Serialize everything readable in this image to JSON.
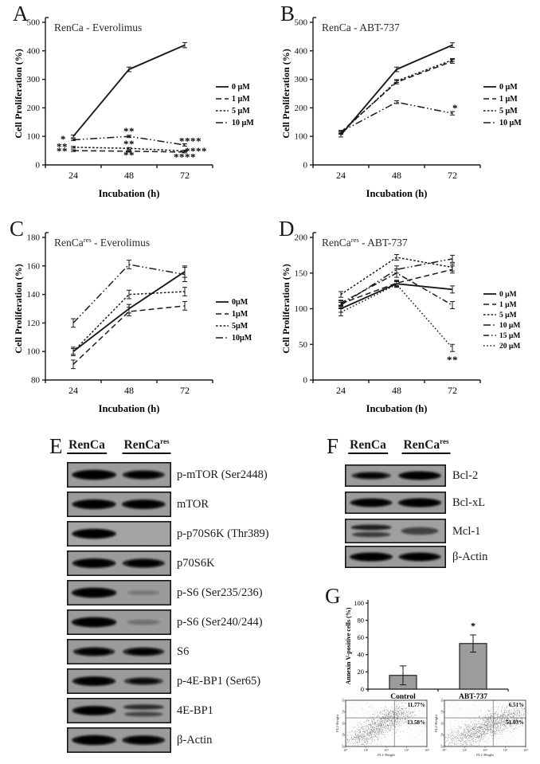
{
  "panels": {
    "A": "A",
    "B": "B",
    "C": "C",
    "D": "D",
    "E": "E",
    "F": "F",
    "G": "G"
  },
  "chart_data": [
    {
      "id": "chartA",
      "type": "line",
      "title_base": "RenCa",
      "title_sup": "",
      "title_rest": " - Everolimus",
      "xlabel": "Incubation (h)",
      "ylabel": "Cell Proliferation (%)",
      "categories": [
        "24",
        "48",
        "72"
      ],
      "ylim": [
        0,
        500
      ],
      "ytick": 100,
      "legend_position": "right",
      "grid": false,
      "series": [
        {
          "name": "0 µM",
          "style": "solid",
          "values": [
            100,
            335,
            420
          ],
          "err": [
            5,
            8,
            9
          ]
        },
        {
          "name": "1 µM",
          "style": "dash",
          "values": [
            50,
            48,
            45
          ],
          "err": [
            3,
            3,
            3
          ]
        },
        {
          "name": "5 µM",
          "style": "dot",
          "values": [
            62,
            58,
            49
          ],
          "err": [
            3,
            3,
            3
          ]
        },
        {
          "name": "10 µM",
          "style": "dashdotdot",
          "values": [
            88,
            100,
            70
          ],
          "err": [
            3,
            4,
            4
          ]
        }
      ],
      "annotations": [
        {
          "xi": -0.18,
          "y": 90,
          "text": "*"
        },
        {
          "xi": -0.2,
          "y": 63,
          "text": "**"
        },
        {
          "xi": -0.2,
          "y": 47,
          "text": "**"
        },
        {
          "xi": 1,
          "y": 117,
          "text": "**"
        },
        {
          "xi": 1,
          "y": 73,
          "text": "**"
        },
        {
          "xi": 1,
          "y": 33,
          "text": "**"
        },
        {
          "xi": 2.1,
          "y": 82,
          "text": "****"
        },
        {
          "xi": 2.2,
          "y": 47,
          "text": "****"
        },
        {
          "xi": 2,
          "y": 26,
          "text": "****"
        }
      ]
    },
    {
      "id": "chartB",
      "type": "line",
      "title_base": "RenCa",
      "title_sup": "",
      "title_rest": " - ABT-737",
      "xlabel": "Incubation (h)",
      "ylabel": "Cell Proliferation (%)",
      "categories": [
        "24",
        "48",
        "72"
      ],
      "ylim": [
        0,
        500
      ],
      "ytick": 100,
      "legend_position": "right",
      "grid": false,
      "series": [
        {
          "name": "0 µM",
          "style": "solid",
          "values": [
            105,
            335,
            420
          ],
          "err": [
            7,
            8,
            8
          ]
        },
        {
          "name": "1 µM",
          "style": "dash",
          "values": [
            115,
            290,
            363
          ],
          "err": [
            5,
            6,
            7
          ]
        },
        {
          "name": "5 µM",
          "style": "dot",
          "values": [
            112,
            294,
            368
          ],
          "err": [
            5,
            5,
            5
          ]
        },
        {
          "name": "10 µM",
          "style": "dashdotdot",
          "values": [
            116,
            220,
            181
          ],
          "err": [
            5,
            5,
            6
          ]
        }
      ],
      "annotations": [
        {
          "xi": 2.05,
          "y": 198,
          "text": "*"
        }
      ]
    },
    {
      "id": "chartC",
      "type": "line",
      "title_base": "RenCa",
      "title_sup": "res",
      "title_rest": " - Everolimus",
      "xlabel": "Incubation (h)",
      "ylabel": "Cell Proliferation (%)",
      "categories": [
        "24",
        "48",
        "72"
      ],
      "ylim": [
        80,
        180
      ],
      "ytick": 20,
      "legend_position": "right",
      "grid": false,
      "series": [
        {
          "name": "0µM",
          "style": "solid",
          "values": [
            100,
            130,
            156
          ],
          "err": [
            3,
            3,
            4
          ]
        },
        {
          "name": "1µM",
          "style": "dash",
          "values": [
            91,
            128,
            132
          ],
          "err": [
            3,
            3,
            3
          ]
        },
        {
          "name": "5µM",
          "style": "dot",
          "values": [
            100,
            140,
            142
          ],
          "err": [
            2,
            3,
            3
          ]
        },
        {
          "name": "10µM",
          "style": "dashdotdot",
          "values": [
            120,
            161,
            154
          ],
          "err": [
            3,
            3,
            5
          ]
        }
      ],
      "annotations": []
    },
    {
      "id": "chartD",
      "type": "line",
      "title_base": "RenCa",
      "title_sup": "res",
      "title_rest": " - ABT-737",
      "xlabel": "Incubation (h)",
      "ylabel": "Cell Proliferation (%)",
      "categories": [
        "24",
        "48",
        "72"
      ],
      "ylim": [
        0,
        200
      ],
      "ytick": 50,
      "legend_position": "right",
      "grid": false,
      "series": [
        {
          "name": "0 µM",
          "style": "solid",
          "values": [
            100,
            135,
            127
          ],
          "err": [
            5,
            4,
            5
          ]
        },
        {
          "name": "1 µM",
          "style": "dash",
          "values": [
            107,
            136,
            155
          ],
          "err": [
            4,
            4,
            5
          ]
        },
        {
          "name": "5 µM",
          "style": "dot",
          "values": [
            120,
            172,
            158
          ],
          "err": [
            4,
            4,
            5
          ]
        },
        {
          "name": "10 µM",
          "style": "dashdotdot",
          "values": [
            105,
            155,
            170
          ],
          "err": [
            4,
            5,
            5
          ]
        },
        {
          "name": "15 µM",
          "style": "dashdot",
          "values": [
            108,
            150,
            105
          ],
          "err": [
            4,
            6,
            5
          ]
        },
        {
          "name": "20 µM",
          "style": "finedot",
          "values": [
            95,
            134,
            45
          ],
          "err": [
            5,
            4,
            5
          ]
        }
      ],
      "annotations": [
        {
          "xi": 2,
          "y": 28,
          "text": "**"
        }
      ]
    },
    {
      "id": "chartG",
      "type": "bar",
      "title": "",
      "ylabel": "Annexin V-positive cells (%)",
      "xlabel": "",
      "categories": [
        "Control",
        "ABT-737"
      ],
      "values": [
        16,
        53
      ],
      "errors": [
        11,
        10
      ],
      "ylim": [
        0,
        100
      ],
      "ytick": 20,
      "bar_color": "#9c9c9c",
      "grid": false,
      "annotations": [
        {
          "xi": 1,
          "y": 70,
          "text": "*"
        }
      ]
    }
  ],
  "flow_plots": [
    {
      "id": "flow0",
      "quadrant_upper_right": "11.77%",
      "quadrant_lower_right": "13.58%",
      "xlabel": "FL1-Height",
      "ylabel": "FL2-Height",
      "ticks": [
        "10⁰",
        "10¹",
        "10²",
        "10³",
        "10⁴"
      ]
    },
    {
      "id": "flow1",
      "quadrant_upper_right": "6.51%",
      "quadrant_lower_right": "51.03%",
      "xlabel": "FL1-Height",
      "ylabel": "FL2-Height",
      "ticks": [
        "10⁰",
        "10¹",
        "10²",
        "10³",
        "10⁴"
      ]
    }
  ],
  "blot_E": {
    "lane_headers": [
      {
        "base": "RenCa",
        "sup": ""
      },
      {
        "base": "RenCa",
        "sup": "res"
      }
    ],
    "rows": [
      {
        "label": "p-mTOR (Ser2448)",
        "lanes": [
          0.95,
          0.8
        ]
      },
      {
        "label": "mTOR",
        "lanes": [
          0.92,
          0.9
        ]
      },
      {
        "label": "p-p70S6K (Thr389)",
        "lanes": [
          0.95,
          0.02
        ],
        "bg": "#cecece"
      },
      {
        "label": "p70S6K",
        "lanes": [
          0.9,
          0.82
        ]
      },
      {
        "label": "p-S6 (Ser235/236)",
        "lanes": [
          1,
          0.12
        ]
      },
      {
        "label": "p-S6 (Ser240/244)",
        "lanes": [
          1,
          0.18
        ]
      },
      {
        "label": "S6",
        "lanes": [
          0.78,
          0.75
        ]
      },
      {
        "label": "p-4E-BP1 (Ser65)",
        "lanes": [
          0.88,
          0.6
        ]
      },
      {
        "label": "4E-BP1",
        "lanes": [
          0.9,
          0.7
        ],
        "double": [
          false,
          true
        ]
      },
      {
        "label": "β-Actin",
        "lanes": [
          0.95,
          0.85
        ]
      }
    ]
  },
  "blot_F": {
    "lane_headers": [
      {
        "base": "RenCa",
        "sup": ""
      },
      {
        "base": "RenCa",
        "sup": "res"
      }
    ],
    "rows": [
      {
        "label": "Bcl-2",
        "lanes": [
          0.7,
          0.92
        ]
      },
      {
        "label": "Bcl-xL",
        "lanes": [
          0.9,
          0.97
        ]
      },
      {
        "label": "Mcl-1",
        "lanes": [
          0.8,
          0.55
        ],
        "double": [
          true,
          false
        ],
        "bg": "#c9c9c9"
      },
      {
        "label": "β-Actin",
        "lanes": [
          0.95,
          0.9
        ]
      }
    ]
  }
}
